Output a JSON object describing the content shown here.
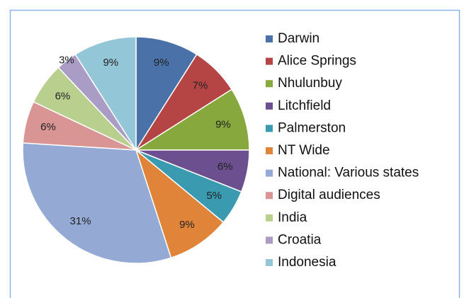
{
  "chart_data": {
    "type": "pie",
    "categories": [
      "Darwin",
      "Alice Springs",
      "Nhulunbuy",
      "Litchfield",
      "Palmerston",
      "NT Wide",
      "National: Various states",
      "Digital audiences",
      "India",
      "Croatia",
      "Indonesia"
    ],
    "values": [
      9,
      7,
      9,
      6,
      5,
      9,
      31,
      6,
      6,
      3,
      9
    ],
    "value_labels": [
      "9%",
      "7%",
      "9%",
      "6%",
      "5%",
      "9%",
      "31%",
      "6%",
      "6%",
      "3%",
      "9%"
    ],
    "colors": [
      "#4a71a8",
      "#b54545",
      "#86a83c",
      "#6b4f8f",
      "#3a9ab0",
      "#e0843a",
      "#94aad4",
      "#d99593",
      "#b8cf8e",
      "#aa9dc5",
      "#93c6d6"
    ],
    "legend": "right"
  }
}
